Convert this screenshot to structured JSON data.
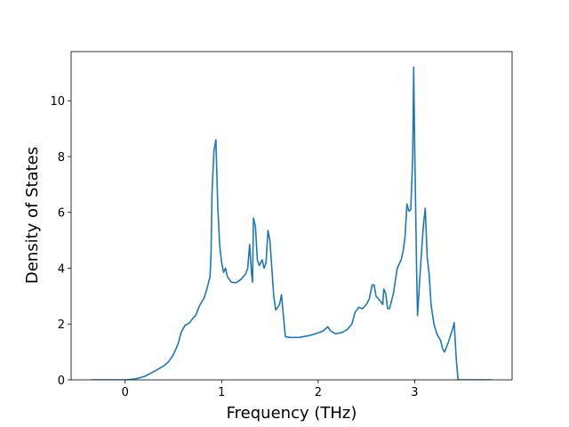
{
  "chart_data": {
    "type": "line",
    "x_label": "Frequency (THz)",
    "y_label": "Density of States",
    "xlim": [
      -0.56,
      4.01
    ],
    "ylim": [
      0,
      11.76
    ],
    "xticks": [
      0,
      1,
      2,
      3
    ],
    "yticks": [
      0,
      2,
      4,
      6,
      8,
      10
    ],
    "grid": false,
    "series": [
      {
        "color": "#1f77b4",
        "x": [
          -0.35,
          0.0,
          0.1,
          0.2,
          0.3,
          0.4,
          0.45,
          0.5,
          0.55,
          0.58,
          0.62,
          0.67,
          0.7,
          0.73,
          0.77,
          0.82,
          0.85,
          0.88,
          0.89,
          0.9,
          0.92,
          0.94,
          0.96,
          0.98,
          1.0,
          1.02,
          1.04,
          1.06,
          1.1,
          1.15,
          1.2,
          1.25,
          1.27,
          1.29,
          1.31,
          1.32,
          1.33,
          1.35,
          1.37,
          1.39,
          1.42,
          1.44,
          1.46,
          1.48,
          1.5,
          1.52,
          1.54,
          1.56,
          1.6,
          1.62,
          1.64,
          1.66,
          1.7,
          1.8,
          1.9,
          2.0,
          2.05,
          2.1,
          2.13,
          2.18,
          2.25,
          2.3,
          2.35,
          2.38,
          2.42,
          2.46,
          2.5,
          2.53,
          2.56,
          2.58,
          2.6,
          2.65,
          2.67,
          2.68,
          2.7,
          2.72,
          2.74,
          2.78,
          2.82,
          2.86,
          2.88,
          2.9,
          2.92,
          2.94,
          2.96,
          2.98,
          2.99,
          3.0,
          3.02,
          3.03,
          3.06,
          3.09,
          3.11,
          3.13,
          3.15,
          3.17,
          3.2,
          3.23,
          3.27,
          3.29,
          3.31,
          3.35,
          3.4,
          3.41,
          3.43,
          3.45,
          3.8
        ],
        "values": [
          0,
          0,
          0.03,
          0.12,
          0.3,
          0.5,
          0.65,
          0.9,
          1.3,
          1.7,
          1.95,
          2.05,
          2.2,
          2.3,
          2.65,
          2.95,
          3.3,
          3.7,
          4.5,
          6.7,
          8.2,
          8.6,
          6.2,
          4.8,
          4.2,
          3.85,
          4.0,
          3.7,
          3.5,
          3.48,
          3.6,
          3.8,
          4.0,
          4.85,
          3.8,
          3.5,
          5.8,
          5.5,
          4.3,
          4.1,
          4.3,
          4.0,
          4.2,
          5.35,
          5.0,
          4.0,
          3.0,
          2.5,
          2.7,
          3.05,
          2.3,
          1.55,
          1.52,
          1.52,
          1.58,
          1.68,
          1.75,
          1.9,
          1.75,
          1.65,
          1.7,
          1.8,
          2.0,
          2.4,
          2.6,
          2.55,
          2.7,
          2.9,
          3.4,
          3.4,
          3.0,
          2.8,
          2.7,
          3.25,
          3.1,
          2.55,
          2.55,
          3.1,
          4.0,
          4.3,
          4.6,
          5.1,
          6.3,
          6.05,
          6.1,
          8.0,
          11.2,
          8.5,
          4.0,
          2.3,
          4.0,
          5.5,
          6.15,
          4.4,
          3.8,
          2.7,
          2.0,
          1.65,
          1.4,
          1.1,
          1.0,
          1.35,
          1.9,
          2.05,
          0.8,
          0,
          0
        ]
      }
    ]
  }
}
